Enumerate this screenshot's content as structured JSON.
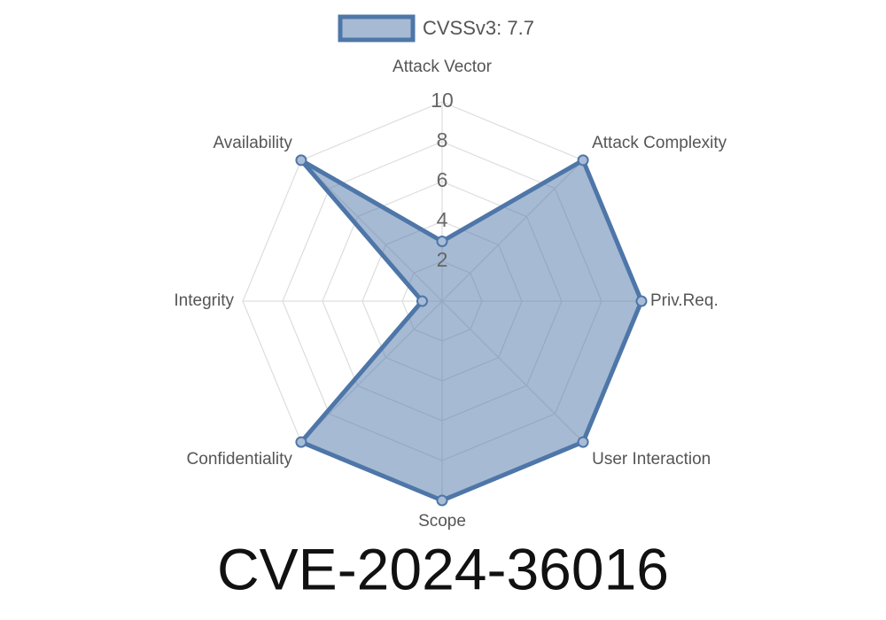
{
  "chart_data": {
    "type": "radar",
    "title": "CVE-2024-36016",
    "categories": [
      "Attack Vector",
      "Attack Complexity",
      "Priv.Req.",
      "User Interaction",
      "Scope",
      "Confidentiality",
      "Integrity",
      "Availability"
    ],
    "series": [
      {
        "name": "CVSSv3: 7.7",
        "color": "#4e76a8",
        "values": [
          3,
          10,
          10,
          10,
          10,
          10,
          1,
          10
        ]
      }
    ],
    "rlim": [
      0,
      10
    ],
    "rticks": [
      2,
      4,
      6,
      8,
      10
    ],
    "grid": true,
    "legend": "top"
  }
}
